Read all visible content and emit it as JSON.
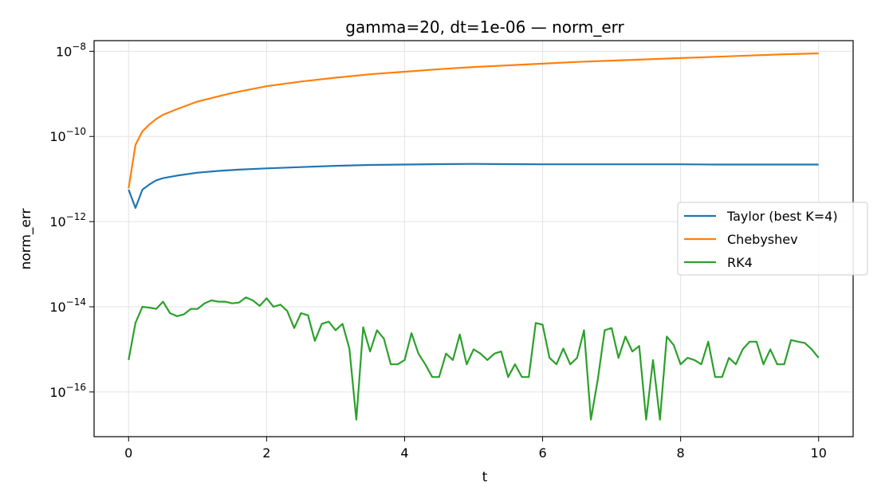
{
  "chart_data": {
    "type": "line",
    "title": "gamma=20, dt=1e-06 — norm_err",
    "xlabel": "t",
    "ylabel": "norm_err",
    "xlim": [
      -0.5,
      10.5
    ],
    "ylim_log10": [
      -17.05,
      -7.75
    ],
    "yscale": "log",
    "grid": true,
    "legend_placement": "center-right",
    "x_ticks": [
      0,
      2,
      4,
      6,
      8,
      10
    ],
    "y_ticks": [
      {
        "exp": -16,
        "base": "10",
        "sup": "−16"
      },
      {
        "exp": -14,
        "base": "10",
        "sup": "−14"
      },
      {
        "exp": -12,
        "base": "10",
        "sup": "−12"
      },
      {
        "exp": -10,
        "base": "10",
        "sup": "−10"
      },
      {
        "exp": -8,
        "base": "10",
        "sup": "−8"
      }
    ],
    "series": [
      {
        "name": "Taylor (best K=4)",
        "color": "#1f77b4",
        "x": [
          0,
          0.1,
          0.2,
          0.3,
          0.4,
          0.5,
          0.7,
          1.0,
          1.3,
          1.6,
          2.0,
          2.5,
          3.0,
          3.5,
          4.0,
          4.5,
          5.0,
          5.5,
          6.0,
          6.5,
          7.0,
          7.5,
          8.0,
          8.5,
          9.0,
          9.5,
          10.0
        ],
        "log10y": [
          -11.25,
          -11.68,
          -11.25,
          -11.13,
          -11.03,
          -10.98,
          -10.92,
          -10.85,
          -10.81,
          -10.78,
          -10.75,
          -10.72,
          -10.69,
          -10.67,
          -10.66,
          -10.65,
          -10.645,
          -10.65,
          -10.655,
          -10.655,
          -10.655,
          -10.655,
          -10.655,
          -10.66,
          -10.66,
          -10.66,
          -10.66
        ]
      },
      {
        "name": "Chebyshev",
        "color": "#ff7f0e",
        "x": [
          0,
          0.1,
          0.2,
          0.3,
          0.4,
          0.5,
          0.7,
          1.0,
          1.5,
          2.0,
          2.5,
          3.0,
          3.5,
          4.0,
          4.5,
          5.0,
          5.5,
          6.0,
          6.5,
          7.0,
          7.5,
          8.0,
          8.5,
          9.0,
          9.5,
          10.0
        ],
        "log10y": [
          -11.22,
          -10.2,
          -9.88,
          -9.72,
          -9.59,
          -9.49,
          -9.36,
          -9.18,
          -8.98,
          -8.82,
          -8.71,
          -8.62,
          -8.54,
          -8.48,
          -8.42,
          -8.37,
          -8.33,
          -8.29,
          -8.25,
          -8.22,
          -8.19,
          -8.16,
          -8.13,
          -8.1,
          -8.07,
          -8.05
        ]
      },
      {
        "name": "RK4",
        "color": "#2ca02c",
        "x": [
          0,
          0.1,
          0.2,
          0.3,
          0.4,
          0.5,
          0.6,
          0.7,
          0.8,
          0.9,
          1.0,
          1.1,
          1.2,
          1.3,
          1.4,
          1.5,
          1.6,
          1.7,
          1.8,
          1.9,
          2.0,
          2.1,
          2.2,
          2.3,
          2.4,
          2.5,
          2.6,
          2.7,
          2.8,
          2.9,
          3.0,
          3.1,
          3.2,
          3.3,
          3.4,
          3.5,
          3.6,
          3.7,
          3.8,
          3.9,
          4.0,
          4.1,
          4.2,
          4.3,
          4.4,
          4.5,
          4.6,
          4.7,
          4.8,
          4.9,
          5.0,
          5.1,
          5.2,
          5.3,
          5.4,
          5.5,
          5.6,
          5.7,
          5.8,
          5.9,
          6.0,
          6.1,
          6.2,
          6.3,
          6.4,
          6.5,
          6.6,
          6.7,
          6.8,
          6.9,
          7.0,
          7.1,
          7.2,
          7.3,
          7.4,
          7.5,
          7.6,
          7.7,
          7.8,
          7.9,
          8.0,
          8.1,
          8.2,
          8.3,
          8.4,
          8.5,
          8.6,
          8.7,
          8.8,
          8.9,
          9.0,
          9.1,
          9.2,
          9.3,
          9.4,
          9.5,
          9.6,
          9.7,
          9.8,
          9.9,
          10.0
        ],
        "log10y": [
          -15.25,
          -14.38,
          -14.0,
          -14.02,
          -14.05,
          -13.88,
          -14.15,
          -14.22,
          -14.18,
          -14.05,
          -14.05,
          -13.92,
          -13.85,
          -13.88,
          -13.88,
          -13.92,
          -13.9,
          -13.78,
          -13.85,
          -13.98,
          -13.8,
          -14.0,
          -13.95,
          -14.1,
          -14.5,
          -14.15,
          -14.2,
          -14.8,
          -14.4,
          -14.35,
          -14.55,
          -14.4,
          -14.98,
          -16.65,
          -14.48,
          -15.05,
          -14.55,
          -14.75,
          -15.35,
          -15.35,
          -15.25,
          -14.62,
          -15.1,
          -15.35,
          -15.65,
          -15.65,
          -15.1,
          -15.25,
          -14.65,
          -15.35,
          -15.0,
          -15.1,
          -15.25,
          -15.1,
          -15.05,
          -15.65,
          -15.35,
          -15.65,
          -15.65,
          -14.38,
          -14.42,
          -15.2,
          -15.35,
          -14.98,
          -15.35,
          -15.2,
          -14.55,
          -16.65,
          -15.7,
          -14.55,
          -14.5,
          -15.2,
          -14.7,
          -15.05,
          -14.92,
          -16.65,
          -15.25,
          -16.65,
          -14.7,
          -14.9,
          -15.35,
          -15.2,
          -15.25,
          -15.35,
          -14.82,
          -15.65,
          -15.65,
          -15.2,
          -15.35,
          -15.0,
          -14.82,
          -14.82,
          -15.35,
          -15.0,
          -15.35,
          -15.35,
          -14.78,
          -14.82,
          -14.85,
          -15.0,
          -15.2
        ]
      }
    ]
  }
}
